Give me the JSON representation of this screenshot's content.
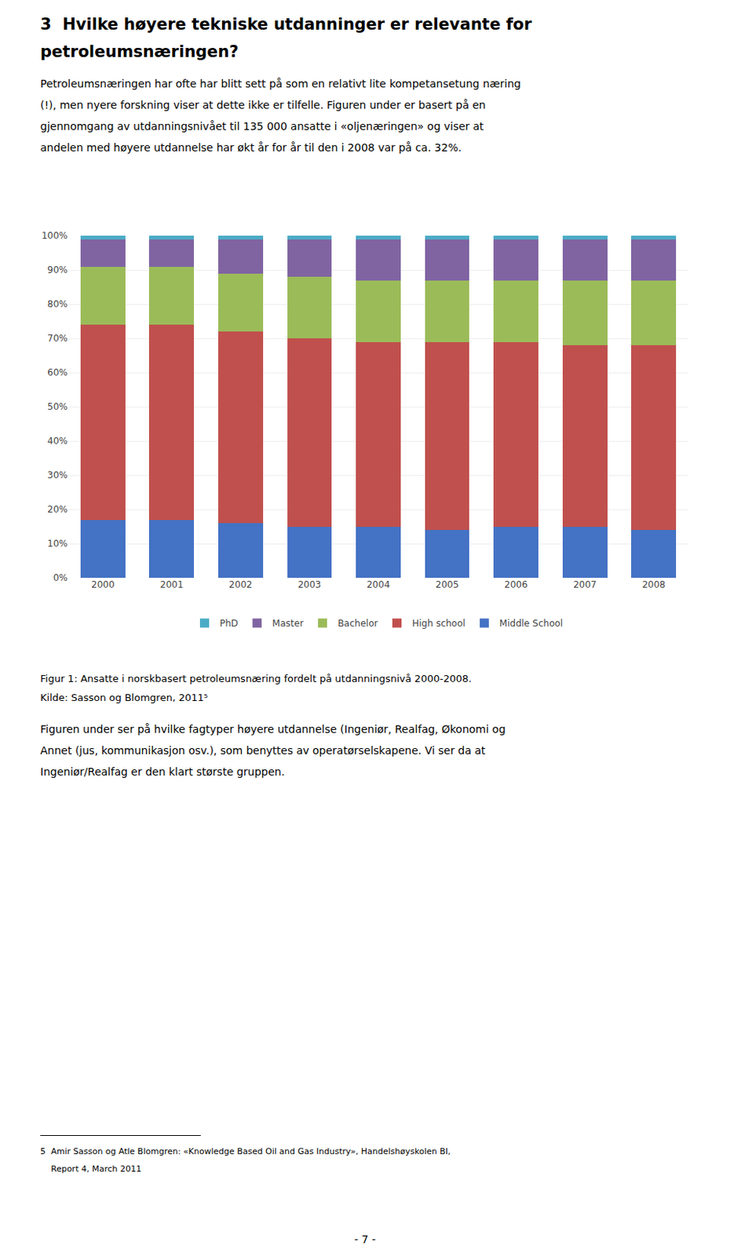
{
  "title": [
    "3  Hvilke høyere tekniske utdanninger er relevante for",
    "petroleumsnæringen?"
  ],
  "paragraphs": [
    [
      "Petroleumsnæringen har ofte har blitt sett på som en relativt lite kompetansetung næring",
      "(!), men nyere forskning viser at dette ikke er tilfelle. Figuren under er basert på en",
      "gjennomgang av utdanningsnivået til 135 000 ansatte i «oljenæringen» og viser at",
      "andelen med høyere utdannelse har økt år for år til den i 2008 var på ca. 32%."
    ],
    [
      "Figuren under ser på hvilke fagtyper høyere utdannelse (Ingeniør, Realfag, Økonomi og",
      "Annet (jus, kommunikasjon osv.), som benyttes av operatørselskapene. Vi ser da at",
      "Ingeniør/Realfag er den klart største gruppen."
    ]
  ],
  "caption": [
    "Figur 1: Ansatte i norskbasert petroleumsnæring fordelt på utdanningsnivå 2000-2008.",
    "Kilde: Sasson og Blomgren, 2011⁵"
  ],
  "footnote": [
    "5  Amir Sasson og Atle Blomgren: «Knowledge Based Oil and Gas Industry», Handelshøyskolen BI,",
    "    Report 4, March 2011"
  ],
  "page_number": "- 7 -",
  "chart_data": {
    "type": "bar",
    "stacked": true,
    "categories": [
      "2000",
      "2001",
      "2002",
      "2003",
      "2004",
      "2005",
      "2006",
      "2007",
      "2008"
    ],
    "series": [
      {
        "name": "Middle School",
        "color": "#4472C4",
        "values": [
          17,
          17,
          16,
          15,
          15,
          14,
          15,
          15,
          14
        ]
      },
      {
        "name": "High school",
        "color": "#C0504D",
        "values": [
          57,
          57,
          56,
          55,
          54,
          55,
          54,
          53,
          54
        ]
      },
      {
        "name": "Bachelor",
        "color": "#9BBB59",
        "values": [
          17,
          17,
          17,
          18,
          18,
          18,
          18,
          19,
          19
        ]
      },
      {
        "name": "Master",
        "color": "#8064A2",
        "values": [
          8,
          8,
          10,
          11,
          12,
          12,
          12,
          12,
          12
        ]
      },
      {
        "name": "PhD",
        "color": "#4BACC6",
        "values": [
          1,
          1,
          1,
          1,
          1,
          1,
          1,
          1,
          1
        ]
      }
    ],
    "ylim": [
      0,
      100
    ],
    "yticks": [
      {
        "value": 0,
        "label": "0%"
      },
      {
        "value": 10,
        "label": "10%"
      },
      {
        "value": 20,
        "label": "20%"
      },
      {
        "value": 30,
        "label": "30%"
      },
      {
        "value": 40,
        "label": "40%"
      },
      {
        "value": 50,
        "label": "50%"
      },
      {
        "value": 60,
        "label": "60%"
      },
      {
        "value": 70,
        "label": "70%"
      },
      {
        "value": 80,
        "label": "80%"
      },
      {
        "value": 90,
        "label": "90%"
      },
      {
        "value": 100,
        "label": "100%"
      }
    ],
    "grid": true,
    "legend": "bottom"
  }
}
